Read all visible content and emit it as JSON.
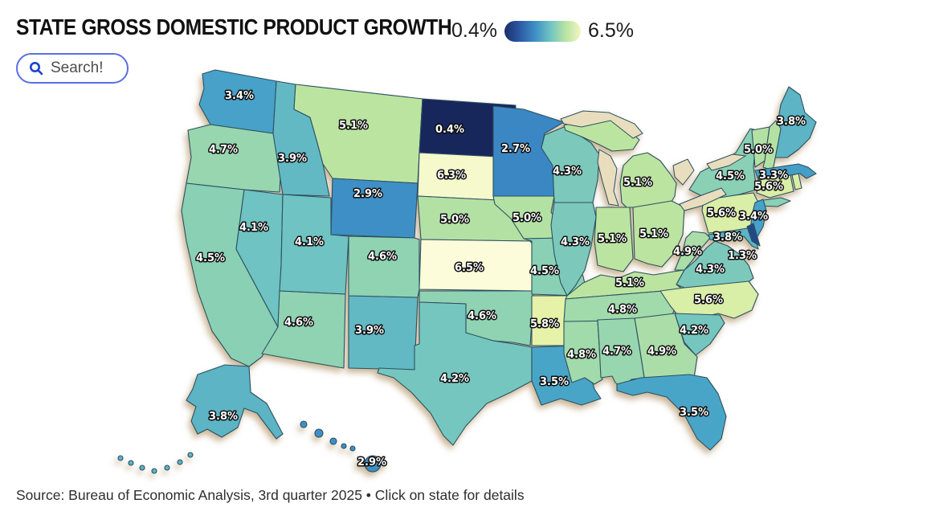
{
  "title": "STATE GROSS DOMESTIC PRODUCT GROWTH",
  "legend": {
    "min_label": "0.4%",
    "max_label": "6.5%",
    "gradient": [
      "#1b2e66",
      "#2a55a0",
      "#3d8ec6",
      "#6fc3c2",
      "#b9e3a4",
      "#f2f6c0"
    ]
  },
  "search": {
    "placeholder": "Search!"
  },
  "source": "Source: Bureau of Economic Analysis, 3rd quarter 2025 • Click on state for details",
  "chart_data": {
    "type": "choropleth",
    "title": "State Gross Domestic Product Growth",
    "region": "United States",
    "unit": "%",
    "scale_min": 0.4,
    "scale_max": 6.5,
    "scale_colors": {
      "low": "#17275c",
      "mid": "#6fc3c2",
      "high": "#fdfcda"
    },
    "states": [
      {
        "code": "WA",
        "name": "Washington",
        "value": 3.4
      },
      {
        "code": "OR",
        "name": "Oregon",
        "value": 4.7
      },
      {
        "code": "CA",
        "name": "California",
        "value": 4.5
      },
      {
        "code": "NV",
        "name": "Nevada",
        "value": 4.1
      },
      {
        "code": "ID",
        "name": "Idaho",
        "value": 3.9
      },
      {
        "code": "MT",
        "name": "Montana",
        "value": 5.1
      },
      {
        "code": "WY",
        "name": "Wyoming",
        "value": 2.9
      },
      {
        "code": "UT",
        "name": "Utah",
        "value": 4.1
      },
      {
        "code": "AZ",
        "name": "Arizona",
        "value": 4.6
      },
      {
        "code": "NM",
        "name": "New Mexico",
        "value": 3.9
      },
      {
        "code": "CO",
        "name": "Colorado",
        "value": 4.6
      },
      {
        "code": "ND",
        "name": "North Dakota",
        "value": 0.4
      },
      {
        "code": "SD",
        "name": "South Dakota",
        "value": 6.3
      },
      {
        "code": "NE",
        "name": "Nebraska",
        "value": 5.0
      },
      {
        "code": "KS",
        "name": "Kansas",
        "value": 6.5
      },
      {
        "code": "OK",
        "name": "Oklahoma",
        "value": 4.6
      },
      {
        "code": "TX",
        "name": "Texas",
        "value": 4.2
      },
      {
        "code": "MN",
        "name": "Minnesota",
        "value": 2.7
      },
      {
        "code": "IA",
        "name": "Iowa",
        "value": 5.0
      },
      {
        "code": "MO",
        "name": "Missouri",
        "value": 4.5
      },
      {
        "code": "AR",
        "name": "Arkansas",
        "value": 5.8
      },
      {
        "code": "LA",
        "name": "Louisiana",
        "value": 3.5
      },
      {
        "code": "WI",
        "name": "Wisconsin",
        "value": 4.3
      },
      {
        "code": "IL",
        "name": "Illinois",
        "value": 4.3
      },
      {
        "code": "MS",
        "name": "Mississippi",
        "value": 4.8
      },
      {
        "code": "MI",
        "name": "Michigan",
        "value": 5.1
      },
      {
        "code": "IN",
        "name": "Indiana",
        "value": 5.1
      },
      {
        "code": "OH",
        "name": "Ohio",
        "value": 5.1
      },
      {
        "code": "KY",
        "name": "Kentucky",
        "value": 5.1
      },
      {
        "code": "TN",
        "name": "Tennessee",
        "value": 4.8
      },
      {
        "code": "WV",
        "name": "West Virginia",
        "value": 4.9
      },
      {
        "code": "VA",
        "name": "Virginia",
        "value": 4.3
      },
      {
        "code": "NC",
        "name": "North Carolina",
        "value": 5.6
      },
      {
        "code": "SC",
        "name": "South Carolina",
        "value": 4.2
      },
      {
        "code": "GA",
        "name": "Georgia",
        "value": 4.9
      },
      {
        "code": "AL",
        "name": "Alabama",
        "value": 4.7
      },
      {
        "code": "FL",
        "name": "Florida",
        "value": 3.5
      },
      {
        "code": "PA",
        "name": "Pennsylvania",
        "value": 5.6
      },
      {
        "code": "NY",
        "name": "New York",
        "value": 4.5
      },
      {
        "code": "NJ",
        "name": "New Jersey",
        "value": 3.4
      },
      {
        "code": "ME",
        "name": "Maine",
        "value": 3.8
      },
      {
        "code": "VT",
        "name": "Vermont",
        "value": 5.0
      },
      {
        "code": "NH",
        "name": "New Hampshire",
        "value": 5.0
      },
      {
        "code": "MA",
        "name": "Massachusetts",
        "value": 3.3
      },
      {
        "code": "CT",
        "name": "Connecticut",
        "value": 5.6
      },
      {
        "code": "RI",
        "name": "Rhode Island",
        "value": 5.6
      },
      {
        "code": "MD",
        "name": "Maryland",
        "value": 3.8
      },
      {
        "code": "DE",
        "name": "Delaware",
        "value": 1.3
      },
      {
        "code": "AK",
        "name": "Alaska",
        "value": 3.8
      },
      {
        "code": "HI",
        "name": "Hawaii",
        "value": 2.9
      }
    ]
  }
}
